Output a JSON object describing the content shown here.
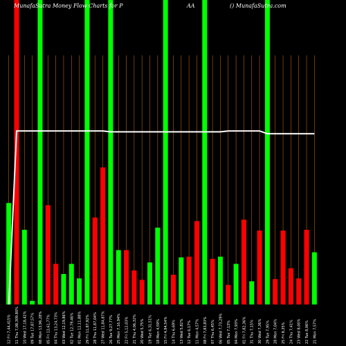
{
  "header": {
    "left": "MunafaSutra  Money Flow  Charts for P",
    "mid": "AA",
    "right": "() MunafaSutra.com"
  },
  "colors": {
    "background": "#000000",
    "up": "#00ff00",
    "down": "#ff0000",
    "separator": "#b8650f",
    "line": "#ffffff",
    "label": "#ffffff"
  },
  "chart_data": {
    "type": "bar",
    "categories": [
      "12 Fri 7,44,415%",
      "11 Thu 7,08,309.80%",
      "10 Wed 17,18,42%",
      "09 Tue 17,87,57%",
      "08 Mon 13,96,28%",
      "05 Fri 13,61,77%",
      "04 Thu 13,24,73%",
      "03 Wed 12,19,86%",
      "02 Tue 12,79,46%",
      "01 Mon 12,11,88%",
      "29 Fri 11,87,92%",
      "28 Thu 11,87,04%",
      "27 Wed 11,84,87%",
      "26 Tue 9,27,77%",
      "25 Mon 7,16,94%",
      "22 Fri 5,12,03%",
      "21 Thu 4,06,32%",
      "20 Wed 5,75%",
      "19 Tue 6,31,51%",
      "18 Mon 4,59%",
      "15 Fri 4,94,54%",
      "14 Thu 6,69%",
      "13 Wed 5,82%",
      "12 Tue 6,17%",
      "11 Mon 4,57%",
      "08 Fri 7,83,83%",
      "07 Thu 6,45%",
      "06 Wed 7,73,29%",
      "05 Tue 7,13%",
      "04 Mon 7,93%",
      "01 Fri 7,82,36%",
      "31 Thu 7,15%",
      "30 Wed 7,36%",
      "29 Tue 7,95%",
      "28 Mon 7,04%",
      "25 Fri 8,35%",
      "24 Thu 7,41%",
      "23 Wed 8,00%",
      "22 Tue 8,06%",
      "21 Mon 7,57%"
    ],
    "series": [
      {
        "values": [
          140,
          420,
          103,
          5,
          420,
          137,
          56,
          42,
          56,
          36,
          420,
          120,
          189,
          420,
          75,
          75,
          47,
          34,
          58,
          106,
          420,
          41,
          65,
          66,
          115,
          420,
          63,
          66,
          27,
          56,
          117,
          32,
          102,
          420,
          35,
          102,
          50,
          36,
          103,
          72
        ],
        "colors": [
          "green",
          "red",
          "green",
          "green",
          "green",
          "red",
          "red",
          "green",
          "green",
          "green",
          "green",
          "red",
          "red",
          "green",
          "green",
          "red",
          "red",
          "red",
          "green",
          "green",
          "green",
          "red",
          "green",
          "red",
          "red",
          "green",
          "red",
          "green",
          "red",
          "green",
          "red",
          "green",
          "red",
          "green",
          "red",
          "red",
          "red",
          "red",
          "red",
          "green"
        ]
      }
    ],
    "flow_line": {
      "values": [
        0,
        190,
        190,
        190,
        190,
        190,
        190,
        190,
        190,
        190,
        190,
        190,
        190,
        189,
        189,
        189,
        189,
        189,
        189,
        189,
        189,
        189,
        189,
        189,
        189,
        189,
        189,
        189,
        190,
        190,
        190,
        190,
        190,
        187,
        187,
        187,
        187,
        187,
        187,
        187
      ]
    },
    "ylim": [
      0,
      420
    ],
    "xlabel": "",
    "ylabel": "",
    "title": ""
  }
}
